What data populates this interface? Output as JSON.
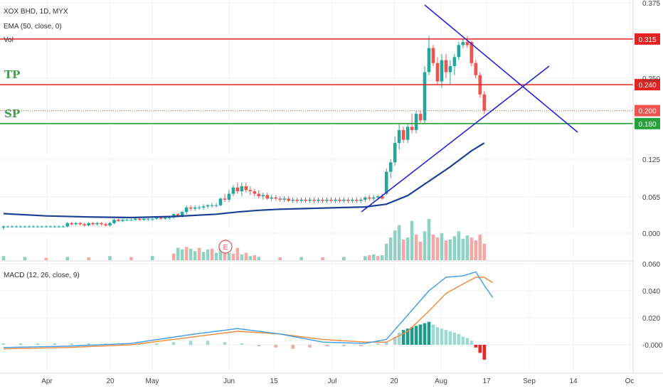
{
  "chart_data": {
    "type": "candlestick",
    "symbol_title": "XOX BHD, 1D, MYX",
    "indicator_legend": "EMA (50, close, 0)",
    "volume_legend": "Vol",
    "macd_legend": "MACD (12, 26, close, 9)",
    "earnings_marker": "E",
    "price_axis_ticks": [
      "0.375",
      "0.250",
      "0.125",
      "0.065",
      "0.000"
    ],
    "macd_axis_ticks": [
      "0.060",
      "0.040",
      "0.020",
      "-0.000"
    ],
    "time_axis_ticks": [
      "Apr",
      "20",
      "May",
      "Jun",
      "15",
      "Jul",
      "20",
      "Aug",
      "17",
      "Sep",
      "14",
      "Oc"
    ],
    "levels": [
      {
        "label": "TP",
        "value": 0.315,
        "value_label": "0.315",
        "color": "#e52222",
        "show_name": false
      },
      {
        "label": "TP",
        "value": 0.24,
        "value_label": "0.240",
        "color": "#e52222",
        "show_name": true
      },
      {
        "label": "SP",
        "value": 0.18,
        "value_label": "0.180",
        "color": "#26a23a",
        "show_name": true
      }
    ],
    "last_price": {
      "value": 0.2,
      "label": "0.200",
      "color": "#ef5350"
    },
    "candles": [
      [
        0,
        0.01,
        0.014,
        0.006,
        0.012
      ],
      [
        1,
        0.012,
        0.014,
        0.01,
        0.012
      ],
      [
        2,
        0.012,
        0.014,
        0.01,
        0.012
      ],
      [
        3,
        0.012,
        0.014,
        0.01,
        0.012
      ],
      [
        4,
        0.012,
        0.014,
        0.01,
        0.012
      ],
      [
        5,
        0.012,
        0.014,
        0.01,
        0.012
      ],
      [
        6,
        0.012,
        0.014,
        0.01,
        0.012
      ],
      [
        7,
        0.012,
        0.014,
        0.01,
        0.012
      ],
      [
        8,
        0.012,
        0.014,
        0.01,
        0.012
      ],
      [
        9,
        0.012,
        0.014,
        0.01,
        0.012
      ],
      [
        10,
        0.012,
        0.014,
        0.01,
        0.012
      ],
      [
        11,
        0.012,
        0.014,
        0.01,
        0.012
      ],
      [
        12,
        0.012,
        0.014,
        0.01,
        0.012
      ],
      [
        13,
        0.012,
        0.014,
        0.01,
        0.012
      ],
      [
        14,
        0.012,
        0.014,
        0.01,
        0.012
      ],
      [
        15,
        0.012,
        0.02,
        0.01,
        0.018
      ],
      [
        16,
        0.018,
        0.02,
        0.014,
        0.016
      ],
      [
        17,
        0.016,
        0.02,
        0.014,
        0.018
      ],
      [
        18,
        0.018,
        0.02,
        0.014,
        0.016
      ],
      [
        19,
        0.016,
        0.018,
        0.012,
        0.014
      ],
      [
        20,
        0.014,
        0.02,
        0.012,
        0.018
      ],
      [
        21,
        0.018,
        0.02,
        0.014,
        0.016
      ],
      [
        22,
        0.016,
        0.02,
        0.014,
        0.018
      ],
      [
        23,
        0.018,
        0.02,
        0.014,
        0.016
      ],
      [
        24,
        0.016,
        0.018,
        0.012,
        0.014
      ],
      [
        25,
        0.014,
        0.02,
        0.012,
        0.018
      ],
      [
        26,
        0.018,
        0.026,
        0.016,
        0.024
      ],
      [
        27,
        0.024,
        0.026,
        0.02,
        0.022
      ],
      [
        28,
        0.022,
        0.026,
        0.02,
        0.024
      ],
      [
        29,
        0.024,
        0.026,
        0.022,
        0.024
      ],
      [
        30,
        0.024,
        0.026,
        0.022,
        0.024
      ],
      [
        31,
        0.024,
        0.028,
        0.022,
        0.026
      ],
      [
        32,
        0.026,
        0.028,
        0.022,
        0.024
      ],
      [
        33,
        0.024,
        0.028,
        0.022,
        0.026
      ],
      [
        34,
        0.026,
        0.028,
        0.022,
        0.026
      ],
      [
        35,
        0.026,
        0.028,
        0.022,
        0.026
      ],
      [
        36,
        0.026,
        0.03,
        0.024,
        0.028
      ],
      [
        37,
        0.028,
        0.03,
        0.024,
        0.026
      ],
      [
        38,
        0.026,
        0.03,
        0.024,
        0.028
      ],
      [
        39,
        0.028,
        0.03,
        0.024,
        0.028
      ],
      [
        40,
        0.028,
        0.036,
        0.026,
        0.034
      ],
      [
        41,
        0.034,
        0.036,
        0.028,
        0.03
      ],
      [
        42,
        0.03,
        0.04,
        0.028,
        0.038
      ],
      [
        43,
        0.038,
        0.05,
        0.034,
        0.046
      ],
      [
        44,
        0.046,
        0.05,
        0.04,
        0.044
      ],
      [
        45,
        0.044,
        0.05,
        0.04,
        0.046
      ],
      [
        46,
        0.046,
        0.05,
        0.042,
        0.046
      ],
      [
        47,
        0.046,
        0.052,
        0.042,
        0.048
      ],
      [
        48,
        0.048,
        0.052,
        0.044,
        0.05
      ],
      [
        49,
        0.05,
        0.054,
        0.046,
        0.05
      ],
      [
        50,
        0.05,
        0.054,
        0.046,
        0.05
      ],
      [
        51,
        0.05,
        0.064,
        0.048,
        0.062
      ],
      [
        52,
        0.062,
        0.07,
        0.056,
        0.06
      ],
      [
        53,
        0.06,
        0.076,
        0.056,
        0.07
      ],
      [
        54,
        0.07,
        0.084,
        0.066,
        0.08
      ],
      [
        55,
        0.08,
        0.088,
        0.07,
        0.074
      ],
      [
        56,
        0.074,
        0.088,
        0.066,
        0.082
      ],
      [
        57,
        0.082,
        0.088,
        0.072,
        0.076
      ],
      [
        58,
        0.076,
        0.082,
        0.068,
        0.074
      ],
      [
        59,
        0.074,
        0.078,
        0.066,
        0.07
      ],
      [
        60,
        0.07,
        0.076,
        0.062,
        0.066
      ],
      [
        61,
        0.066,
        0.072,
        0.06,
        0.068
      ],
      [
        62,
        0.068,
        0.072,
        0.06,
        0.062
      ],
      [
        63,
        0.062,
        0.068,
        0.058,
        0.064
      ],
      [
        64,
        0.064,
        0.068,
        0.058,
        0.062
      ],
      [
        65,
        0.062,
        0.066,
        0.056,
        0.06
      ],
      [
        66,
        0.06,
        0.066,
        0.056,
        0.062
      ],
      [
        67,
        0.062,
        0.066,
        0.056,
        0.058
      ],
      [
        68,
        0.058,
        0.064,
        0.054,
        0.06
      ],
      [
        69,
        0.06,
        0.064,
        0.054,
        0.058
      ],
      [
        70,
        0.058,
        0.064,
        0.054,
        0.06
      ],
      [
        71,
        0.06,
        0.064,
        0.054,
        0.058
      ],
      [
        72,
        0.058,
        0.064,
        0.054,
        0.06
      ],
      [
        73,
        0.06,
        0.064,
        0.054,
        0.058
      ],
      [
        74,
        0.058,
        0.064,
        0.054,
        0.06
      ],
      [
        75,
        0.06,
        0.064,
        0.054,
        0.058
      ],
      [
        76,
        0.058,
        0.064,
        0.054,
        0.06
      ],
      [
        77,
        0.06,
        0.064,
        0.054,
        0.058
      ],
      [
        78,
        0.058,
        0.064,
        0.054,
        0.06
      ],
      [
        79,
        0.06,
        0.064,
        0.054,
        0.058
      ],
      [
        80,
        0.058,
        0.064,
        0.054,
        0.06
      ],
      [
        81,
        0.06,
        0.064,
        0.054,
        0.058
      ],
      [
        82,
        0.058,
        0.064,
        0.054,
        0.06
      ],
      [
        83,
        0.06,
        0.064,
        0.054,
        0.058
      ],
      [
        84,
        0.058,
        0.064,
        0.054,
        0.06
      ],
      [
        85,
        0.06,
        0.066,
        0.056,
        0.064
      ],
      [
        86,
        0.064,
        0.068,
        0.058,
        0.062
      ],
      [
        87,
        0.062,
        0.068,
        0.058,
        0.064
      ],
      [
        88,
        0.064,
        0.068,
        0.06,
        0.066
      ],
      [
        89,
        0.066,
        0.07,
        0.06,
        0.062
      ],
      [
        90,
        0.07,
        0.11,
        0.068,
        0.105
      ],
      [
        91,
        0.105,
        0.125,
        0.095,
        0.12
      ],
      [
        92,
        0.12,
        0.16,
        0.115,
        0.15
      ],
      [
        93,
        0.15,
        0.18,
        0.14,
        0.17
      ],
      [
        94,
        0.17,
        0.175,
        0.15,
        0.155
      ],
      [
        95,
        0.155,
        0.18,
        0.15,
        0.175
      ],
      [
        96,
        0.175,
        0.195,
        0.165,
        0.17
      ],
      [
        97,
        0.17,
        0.2,
        0.165,
        0.195
      ],
      [
        98,
        0.195,
        0.2,
        0.18,
        0.185
      ],
      [
        99,
        0.185,
        0.27,
        0.18,
        0.26
      ],
      [
        100,
        0.26,
        0.32,
        0.255,
        0.3
      ],
      [
        101,
        0.3,
        0.305,
        0.27,
        0.275
      ],
      [
        102,
        0.275,
        0.285,
        0.24,
        0.245
      ],
      [
        103,
        0.245,
        0.29,
        0.235,
        0.28
      ],
      [
        104,
        0.28,
        0.29,
        0.25,
        0.26
      ],
      [
        105,
        0.26,
        0.28,
        0.24,
        0.27
      ],
      [
        106,
        0.27,
        0.29,
        0.255,
        0.285
      ],
      [
        107,
        0.285,
        0.31,
        0.28,
        0.305
      ],
      [
        108,
        0.305,
        0.315,
        0.3,
        0.31
      ],
      [
        109,
        0.31,
        0.32,
        0.3,
        0.305
      ],
      [
        110,
        0.31,
        0.312,
        0.27,
        0.275
      ],
      [
        111,
        0.275,
        0.28,
        0.25,
        0.255
      ],
      [
        112,
        0.255,
        0.26,
        0.22,
        0.225
      ],
      [
        113,
        0.225,
        0.23,
        0.195,
        0.2
      ]
    ],
    "ema": [
      [
        0,
        0.035
      ],
      [
        10,
        0.031
      ],
      [
        20,
        0.029
      ],
      [
        30,
        0.028
      ],
      [
        40,
        0.03
      ],
      [
        50,
        0.034
      ],
      [
        55,
        0.038
      ],
      [
        60,
        0.041
      ],
      [
        65,
        0.043
      ],
      [
        70,
        0.044
      ],
      [
        75,
        0.045
      ],
      [
        80,
        0.046
      ],
      [
        85,
        0.047
      ],
      [
        90,
        0.052
      ],
      [
        95,
        0.067
      ],
      [
        100,
        0.09
      ],
      [
        105,
        0.113
      ],
      [
        110,
        0.138
      ],
      [
        113,
        0.15
      ]
    ],
    "volume": [
      [
        0,
        0.1,
        1
      ],
      [
        5,
        0.08,
        1
      ],
      [
        10,
        0.06,
        0
      ],
      [
        15,
        0.08,
        1
      ],
      [
        20,
        0.07,
        0
      ],
      [
        25,
        0.1,
        1
      ],
      [
        30,
        0.08,
        0
      ],
      [
        35,
        0.1,
        1
      ],
      [
        40,
        0.16,
        0
      ],
      [
        41,
        0.3,
        1
      ],
      [
        42,
        0.26,
        1
      ],
      [
        43,
        0.32,
        0
      ],
      [
        44,
        0.28,
        1
      ],
      [
        45,
        0.22,
        1
      ],
      [
        46,
        0.3,
        0
      ],
      [
        47,
        0.2,
        1
      ],
      [
        48,
        0.26,
        1
      ],
      [
        49,
        0.28,
        0
      ],
      [
        50,
        0.18,
        1
      ],
      [
        51,
        0.35,
        1
      ],
      [
        52,
        0.22,
        0
      ],
      [
        53,
        0.18,
        1
      ],
      [
        54,
        0.16,
        0
      ],
      [
        55,
        0.3,
        0
      ],
      [
        56,
        0.14,
        1
      ],
      [
        57,
        0.18,
        0
      ],
      [
        58,
        0.1,
        1
      ],
      [
        59,
        0.12,
        0
      ],
      [
        60,
        0.08,
        1
      ],
      [
        65,
        0.07,
        0
      ],
      [
        70,
        0.08,
        1
      ],
      [
        75,
        0.07,
        0
      ],
      [
        80,
        0.08,
        1
      ],
      [
        85,
        0.1,
        1
      ],
      [
        86,
        0.12,
        0
      ],
      [
        87,
        0.14,
        1
      ],
      [
        88,
        0.1,
        0
      ],
      [
        89,
        0.12,
        1
      ],
      [
        90,
        0.4,
        1
      ],
      [
        91,
        0.55,
        1
      ],
      [
        92,
        0.72,
        1
      ],
      [
        93,
        0.85,
        1
      ],
      [
        94,
        0.5,
        0
      ],
      [
        95,
        0.55,
        1
      ],
      [
        96,
        0.95,
        1
      ],
      [
        97,
        0.62,
        0
      ],
      [
        98,
        0.45,
        0
      ],
      [
        99,
        0.7,
        1
      ],
      [
        100,
        1.0,
        1
      ],
      [
        101,
        0.62,
        0
      ],
      [
        102,
        0.55,
        0
      ],
      [
        103,
        0.65,
        1
      ],
      [
        104,
        0.48,
        0
      ],
      [
        105,
        0.5,
        1
      ],
      [
        106,
        0.58,
        1
      ],
      [
        107,
        0.7,
        1
      ],
      [
        108,
        0.52,
        1
      ],
      [
        109,
        0.6,
        1
      ],
      [
        110,
        0.55,
        0
      ],
      [
        111,
        0.48,
        0
      ],
      [
        112,
        0.62,
        0
      ],
      [
        113,
        0.4,
        0
      ]
    ],
    "macd_line": [
      [
        0,
        -0.002
      ],
      [
        15,
        -0.001
      ],
      [
        30,
        0.001
      ],
      [
        45,
        0.008
      ],
      [
        55,
        0.012
      ],
      [
        65,
        0.008
      ],
      [
        75,
        0.002
      ],
      [
        85,
        0.001
      ],
      [
        90,
        0.004
      ],
      [
        95,
        0.022
      ],
      [
        100,
        0.04
      ],
      [
        104,
        0.05
      ],
      [
        108,
        0.051
      ],
      [
        111,
        0.054
      ],
      [
        113,
        0.044
      ],
      [
        115,
        0.035
      ]
    ],
    "macd_signal": [
      [
        0,
        -0.003
      ],
      [
        15,
        -0.002
      ],
      [
        30,
        0.0
      ],
      [
        45,
        0.006
      ],
      [
        55,
        0.01
      ],
      [
        65,
        0.008
      ],
      [
        75,
        0.004
      ],
      [
        85,
        0.002
      ],
      [
        90,
        0.002
      ],
      [
        95,
        0.01
      ],
      [
        100,
        0.025
      ],
      [
        104,
        0.038
      ],
      [
        108,
        0.045
      ],
      [
        111,
        0.05
      ],
      [
        113,
        0.05
      ],
      [
        115,
        0.046
      ]
    ],
    "macd_hist": [
      [
        0,
        0.001
      ],
      [
        4,
        0.001
      ],
      [
        8,
        0.001
      ],
      [
        12,
        0.001
      ],
      [
        16,
        0.001
      ],
      [
        20,
        0.001
      ],
      [
        24,
        0.001
      ],
      [
        28,
        0.001
      ],
      [
        32,
        0.001
      ],
      [
        36,
        0.001
      ],
      [
        40,
        0.002
      ],
      [
        44,
        0.003
      ],
      [
        48,
        0.003
      ],
      [
        52,
        0.002
      ],
      [
        56,
        0.001
      ],
      [
        60,
        -0.001
      ],
      [
        64,
        -0.002
      ],
      [
        68,
        -0.003
      ],
      [
        72,
        -0.002
      ],
      [
        76,
        -0.001
      ],
      [
        80,
        -0.001
      ],
      [
        84,
        -0.001
      ],
      [
        88,
        0.001
      ],
      [
        90,
        0.002
      ],
      [
        92,
        0.006
      ],
      [
        93,
        0.009
      ],
      [
        94,
        0.011
      ],
      [
        95,
        0.012
      ],
      [
        96,
        0.013
      ],
      [
        97,
        0.014
      ],
      [
        98,
        0.015
      ],
      [
        99,
        0.016
      ],
      [
        100,
        0.017
      ],
      [
        101,
        0.015
      ],
      [
        102,
        0.013
      ],
      [
        103,
        0.012
      ],
      [
        104,
        0.011
      ],
      [
        105,
        0.01
      ],
      [
        106,
        0.009
      ],
      [
        107,
        0.008
      ],
      [
        108,
        0.006
      ],
      [
        109,
        0.005
      ],
      [
        110,
        0.003
      ],
      [
        111,
        -0.002
      ],
      [
        112,
        -0.006
      ],
      [
        113,
        -0.011
      ]
    ]
  }
}
